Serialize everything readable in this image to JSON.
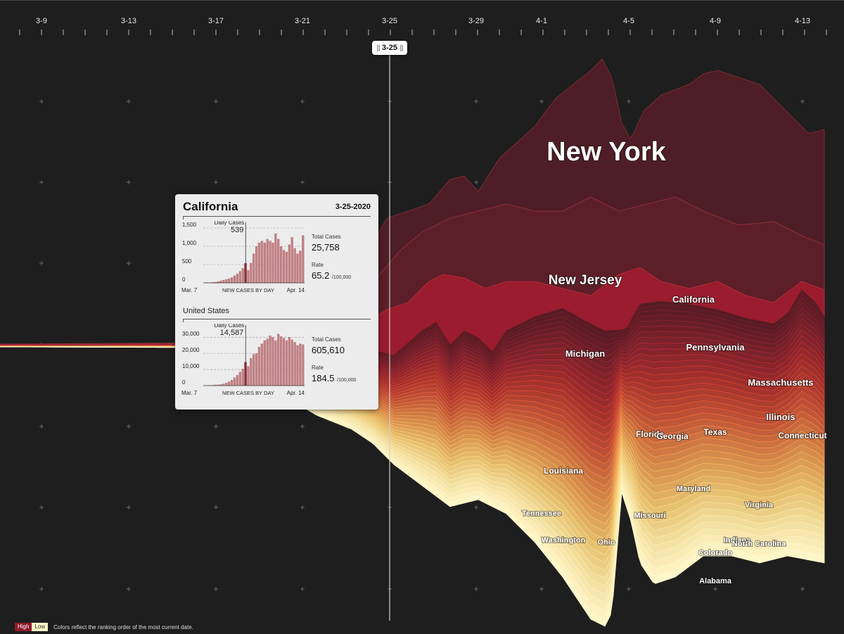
{
  "chart_data": {
    "type": "area",
    "x_axis": {
      "tick_labels": [
        "3-9",
        "3-13",
        "3-17",
        "3-21",
        "3-25",
        "3-29",
        "4-1",
        "4-5",
        "4-9",
        "4-13"
      ]
    },
    "scrubber": {
      "label": "3-25"
    },
    "labeled_states": [
      {
        "name": "New York",
        "size": "xl"
      },
      {
        "name": "New Jersey",
        "size": "l"
      },
      {
        "name": "California",
        "size": "s"
      },
      {
        "name": "Michigan",
        "size": "s"
      },
      {
        "name": "Pennsylvania",
        "size": "s"
      },
      {
        "name": "Massachusetts",
        "size": "s"
      },
      {
        "name": "Illinois",
        "size": "s"
      },
      {
        "name": "Connecticut",
        "size": "xs"
      },
      {
        "name": "Florida",
        "size": "xs"
      },
      {
        "name": "Georgia",
        "size": "xs"
      },
      {
        "name": "Texas",
        "size": "xs"
      },
      {
        "name": "Louisiana",
        "size": "xs"
      },
      {
        "name": "Maryland",
        "size": "xxs"
      },
      {
        "name": "Virginia",
        "size": "xxs"
      },
      {
        "name": "Tennessee",
        "size": "xxs"
      },
      {
        "name": "Missouri",
        "size": "xxs"
      },
      {
        "name": "Washington",
        "size": "xxs"
      },
      {
        "name": "Ohio",
        "size": "xxs"
      },
      {
        "name": "Indiana",
        "size": "xxs"
      },
      {
        "name": "North Carolina",
        "size": "xxs"
      },
      {
        "name": "Colorado",
        "size": "xxs"
      },
      {
        "name": "Alabama",
        "size": "xxs"
      }
    ],
    "legend": {
      "high": "High",
      "low": "Low",
      "note": "Colors reflect the ranking order of the most current date."
    },
    "colors": {
      "high": "#8e1b2c",
      "low": "#fff6c8",
      "background": "#1e1e1e"
    }
  },
  "tooltip": {
    "state": "California",
    "date": "3-25-2020",
    "state_panel": {
      "daily_label": "Daily Cases",
      "daily_value": "539",
      "total_label": "Total Cases",
      "total_value": "25,758",
      "rate_label": "Rate",
      "rate_value": "65.2",
      "rate_unit": "/100,000",
      "y_ticks": [
        "1,500",
        "1,000",
        "500",
        "0"
      ],
      "y_tick_values": [
        1500,
        1000,
        500,
        0
      ],
      "x_start": "Mar. 7",
      "x_mid": "NEW CASES BY DAY",
      "x_end": "Apr. 14",
      "bars": [
        5,
        15,
        10,
        20,
        25,
        40,
        60,
        80,
        100,
        120,
        150,
        200,
        250,
        320,
        400,
        539,
        350,
        550,
        800,
        1000,
        1100,
        1150,
        1100,
        1200,
        1150,
        1100,
        1350,
        1200,
        1000,
        900,
        850,
        1050,
        1250,
        950,
        800,
        880,
        1300
      ],
      "highlight_index": 15,
      "y_max": 1500
    },
    "country_label": "United States",
    "country_panel": {
      "daily_label": "Daily Cases",
      "daily_value": "14,587",
      "total_label": "Total Cases",
      "total_value": "605,610",
      "rate_label": "Rate",
      "rate_value": "184.5",
      "rate_unit": "/100,000",
      "y_ticks": [
        "30,000",
        "20,000",
        "10,000",
        "0"
      ],
      "y_tick_values": [
        30000,
        20000,
        10000,
        0
      ],
      "x_start": "Mar. 7",
      "x_mid": "NEW CASES BY DAY",
      "x_end": "Apr. 14",
      "bars": [
        100,
        150,
        200,
        300,
        500,
        600,
        800,
        1200,
        1800,
        2500,
        3500,
        5000,
        6500,
        8500,
        10500,
        14587,
        12000,
        17000,
        19500,
        20000,
        24000,
        26000,
        28000,
        29000,
        31000,
        30000,
        28000,
        32000,
        30500,
        29500,
        28000,
        30000,
        28500,
        27000,
        25000,
        26000,
        25500
      ],
      "highlight_index": 15,
      "y_max": 34000
    }
  }
}
